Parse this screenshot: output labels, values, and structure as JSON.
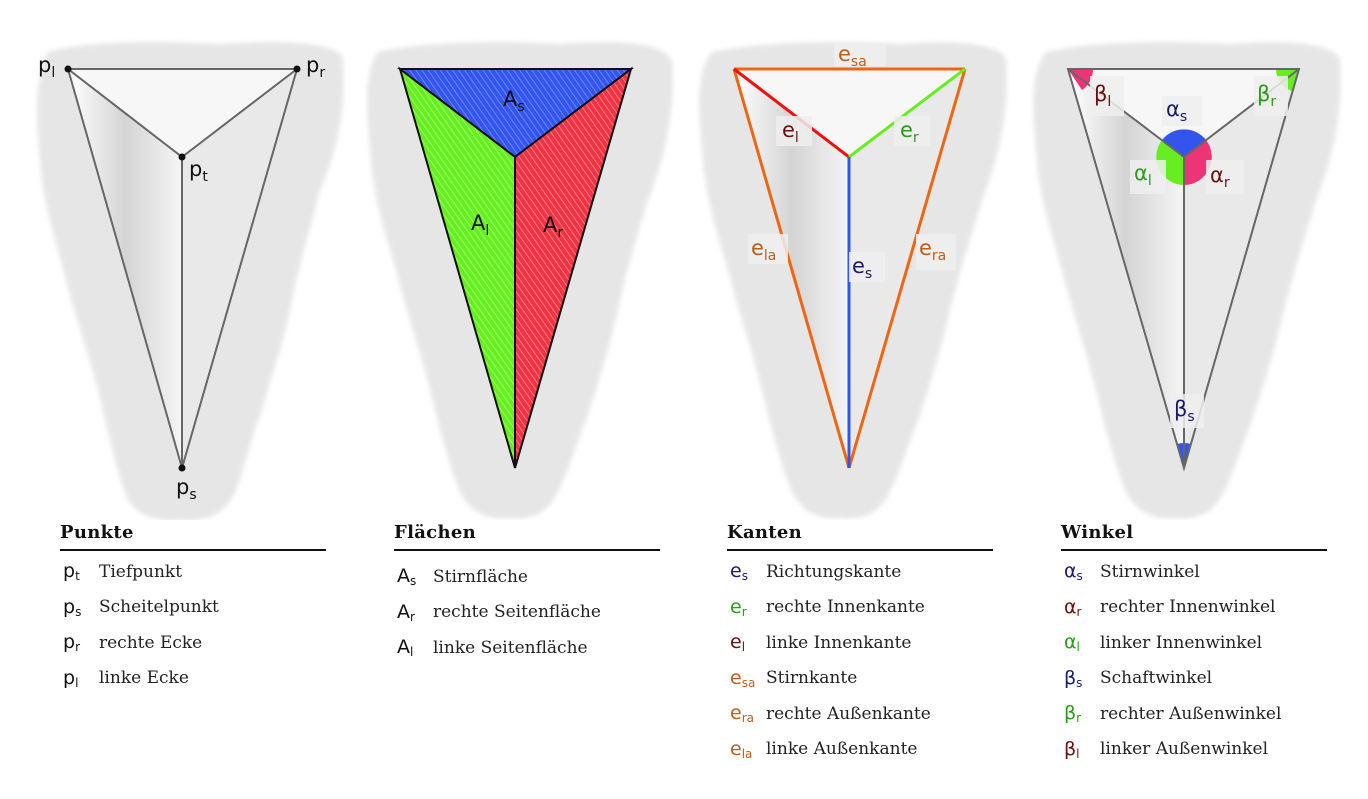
{
  "colors": {
    "blue": "#3355ee",
    "green": "#66ee22",
    "red": "#ee3344",
    "orange": "#ee6611",
    "dark_blue": "#1a1a66",
    "dark_red": "#661111",
    "green_text": "#2a9a1a",
    "orange_text": "#b86020",
    "gray_line": "#666666",
    "bg_blob": "#e6e6e6"
  },
  "panels": {
    "punkte": {
      "labels": {
        "pl": {
          "base": "p",
          "sub": "l"
        },
        "pr": {
          "base": "p",
          "sub": "r"
        },
        "pt": {
          "base": "p",
          "sub": "t"
        },
        "ps": {
          "base": "p",
          "sub": "s"
        }
      }
    },
    "flaechen": {
      "labels": {
        "as": {
          "base": "A",
          "sub": "s"
        },
        "al": {
          "base": "A",
          "sub": "l"
        },
        "ar": {
          "base": "A",
          "sub": "r"
        }
      }
    },
    "kanten": {
      "labels": {
        "esa": {
          "base": "e",
          "sub": "sa"
        },
        "el": {
          "base": "e",
          "sub": "l"
        },
        "er": {
          "base": "e",
          "sub": "r"
        },
        "ela": {
          "base": "e",
          "sub": "la"
        },
        "es": {
          "base": "e",
          "sub": "s"
        },
        "era": {
          "base": "e",
          "sub": "ra"
        }
      }
    },
    "winkel": {
      "labels": {
        "beta_l": {
          "base": "β",
          "sub": "l"
        },
        "beta_r": {
          "base": "β",
          "sub": "r"
        },
        "alpha_s": {
          "base": "α",
          "sub": "s"
        },
        "alpha_l": {
          "base": "α",
          "sub": "l"
        },
        "alpha_r": {
          "base": "α",
          "sub": "r"
        },
        "beta_s": {
          "base": "β",
          "sub": "s"
        }
      }
    }
  },
  "legends": {
    "punkte": {
      "title": "Punkte",
      "items": [
        {
          "base": "p",
          "sub": "t",
          "text": "Tiefpunkt"
        },
        {
          "base": "p",
          "sub": "s",
          "text": "Scheitelpunkt"
        },
        {
          "base": "p",
          "sub": "r",
          "text": "rechte Ecke"
        },
        {
          "base": "p",
          "sub": "l",
          "text": "linke Ecke"
        }
      ]
    },
    "flaechen": {
      "title": "Flächen",
      "items": [
        {
          "base": "A",
          "sub": "s",
          "text": "Stirnfläche"
        },
        {
          "base": "A",
          "sub": "r",
          "text": "rechte Seitenfläche"
        },
        {
          "base": "A",
          "sub": "l",
          "text": "linke Seitenfläche"
        }
      ]
    },
    "kanten": {
      "title": "Kanten",
      "items": [
        {
          "base": "e",
          "sub": "s",
          "text": "Richtungskante"
        },
        {
          "base": "e",
          "sub": "r",
          "text": "rechte Innenkante"
        },
        {
          "base": "e",
          "sub": "l",
          "text": "linke Innenkante"
        },
        {
          "base": "e",
          "sub": "sa",
          "text": "Stirnkante"
        },
        {
          "base": "e",
          "sub": "ra",
          "text": "rechte Außenkante"
        },
        {
          "base": "e",
          "sub": "la",
          "text": "linke Außenkante"
        }
      ]
    },
    "winkel": {
      "title": "Winkel",
      "items": [
        {
          "base": "α",
          "sub": "s",
          "text": "Stirnwinkel"
        },
        {
          "base": "α",
          "sub": "r",
          "text": "rechter Innenwinkel"
        },
        {
          "base": "α",
          "sub": "l",
          "text": "linker Innenwinkel"
        },
        {
          "base": "β",
          "sub": "s",
          "text": "Schaftwinkel"
        },
        {
          "base": "β",
          "sub": "r",
          "text": "rechter Außenwinkel"
        },
        {
          "base": "β",
          "sub": "l",
          "text": "linker Außenwinkel"
        }
      ]
    }
  }
}
